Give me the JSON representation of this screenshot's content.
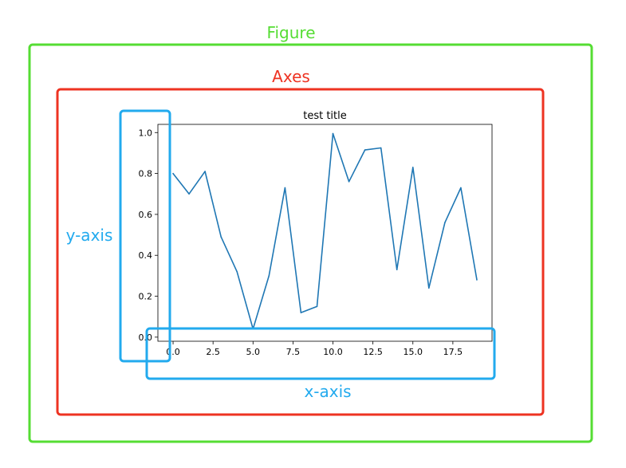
{
  "labels": {
    "figure": "Figure",
    "axes": "Axes",
    "y_axis": "y-axis",
    "x_axis": "x-axis"
  },
  "colors": {
    "figure": "#55dd33",
    "axes": "#ee3322",
    "axis_callout": "#22aaee",
    "line": "#1f77b4"
  },
  "chart_data": {
    "type": "line",
    "title": "test title",
    "xlabel": "",
    "ylabel": "",
    "xlim": [
      -0.95,
      19.95
    ],
    "ylim": [
      -0.02,
      1.04
    ],
    "xticks": [
      0.0,
      2.5,
      5.0,
      7.5,
      10.0,
      12.5,
      15.0,
      17.5
    ],
    "xtick_labels": [
      "0.0",
      "2.5",
      "5.0",
      "7.5",
      "10.0",
      "12.5",
      "15.0",
      "17.5"
    ],
    "yticks": [
      0.0,
      0.2,
      0.4,
      0.6,
      0.8,
      1.0
    ],
    "ytick_labels": [
      "0.0",
      "0.2",
      "0.4",
      "0.6",
      "0.8",
      "1.0"
    ],
    "grid": false,
    "x": [
      0,
      1,
      2,
      3,
      4,
      5,
      6,
      7,
      8,
      9,
      10,
      11,
      12,
      13,
      14,
      15,
      16,
      17,
      18,
      19
    ],
    "y": [
      0.8,
      0.7,
      0.81,
      0.49,
      0.32,
      0.04,
      0.3,
      0.73,
      0.12,
      0.15,
      0.995,
      0.76,
      0.915,
      0.925,
      0.33,
      0.83,
      0.24,
      0.56,
      0.73,
      0.28
    ]
  }
}
